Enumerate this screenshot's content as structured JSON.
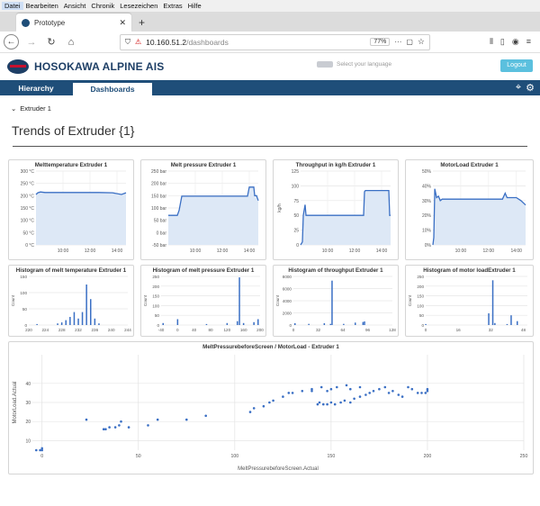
{
  "browser": {
    "menu": [
      "Datei",
      "Bearbeiten",
      "Ansicht",
      "Chronik",
      "Lesezeichen",
      "Extras",
      "Hilfe"
    ],
    "tab_title": "Prototype",
    "url_host": "10.160.51.2",
    "url_path": "/dashboards",
    "zoom": "77%"
  },
  "app": {
    "brand": "HOSOKAWA ALPINE",
    "brand_suffix": "AIS",
    "language_placeholder": "Select your language",
    "logout": "Logout",
    "nav_tabs": [
      "Hierarchy",
      "Dashboards"
    ],
    "breadcrumb": "Extruder 1",
    "page_title": "Trends of Extruder {1}"
  },
  "colors": {
    "accent": "#1f4e79",
    "series": "#3a6fc4",
    "fill": "#dde8f6",
    "logout": "#5bc0de"
  },
  "chart_data": [
    {
      "type": "line",
      "title": "Melttemperature Extruder 1",
      "y_ticks": [
        "0 °C",
        "50 °C",
        "100 °C",
        "150 °C",
        "200 °C",
        "250 °C",
        "300 °C"
      ],
      "ylim": [
        0,
        300
      ],
      "x_ticks": [
        "10:00",
        "12:00",
        "14:00"
      ],
      "x": [
        0,
        2,
        5,
        10,
        20,
        30,
        40,
        55,
        70,
        85,
        95,
        100
      ],
      "y": [
        205,
        212,
        215,
        213,
        213,
        213,
        213,
        213,
        213,
        212,
        205,
        212
      ]
    },
    {
      "type": "line",
      "title": "Melt pressure Extruder 1",
      "y_ticks": [
        "-50 bar",
        "0 bar",
        "50 bar",
        "100 bar",
        "150 bar",
        "200 bar",
        "250 bar"
      ],
      "ylim": [
        -50,
        250
      ],
      "x_ticks": [
        "10:00",
        "12:00",
        "14:00"
      ],
      "x": [
        0,
        10,
        12,
        15,
        20,
        40,
        60,
        80,
        88,
        90,
        95,
        96,
        98,
        100
      ],
      "y": [
        70,
        70,
        90,
        148,
        148,
        148,
        148,
        148,
        148,
        185,
        185,
        150,
        150,
        130
      ]
    },
    {
      "type": "line",
      "title": "Throughput in kg/h Extruder 1",
      "ylabel": "kg/h",
      "y_ticks": [
        "0",
        "25",
        "50",
        "75",
        "100",
        "125"
      ],
      "ylim": [
        0,
        125
      ],
      "x_ticks": [
        "10:00",
        "12:00",
        "14:00"
      ],
      "x": [
        0,
        2,
        3,
        5,
        6,
        10,
        20,
        40,
        60,
        70,
        71,
        72,
        75,
        98,
        99,
        100
      ],
      "y": [
        0,
        5,
        50,
        68,
        50,
        50,
        50,
        50,
        50,
        50,
        90,
        92,
        92,
        92,
        50,
        50
      ]
    },
    {
      "type": "line",
      "title": "MotorLoad Extruder 1",
      "y_ticks": [
        "0%",
        "10%",
        "20%",
        "30%",
        "40%",
        "50%"
      ],
      "ylim": [
        0,
        50
      ],
      "x_ticks": [
        "10:00",
        "12:00",
        "14:00"
      ],
      "x": [
        0,
        1,
        2,
        4,
        6,
        8,
        10,
        20,
        40,
        60,
        75,
        78,
        80,
        90,
        95,
        100
      ],
      "y": [
        0,
        5,
        38,
        32,
        33,
        30,
        31,
        31,
        31,
        31,
        31,
        35,
        32,
        32,
        30,
        27
      ]
    },
    {
      "type": "bar",
      "title": "Histogram of melt temperature Extruder 1",
      "ylabel": "Count",
      "x_ticks": [
        "220",
        "224",
        "228",
        "232",
        "236",
        "240",
        "244"
      ],
      "xlim": [
        220,
        244
      ],
      "y_ticks": [
        "0",
        "50",
        "100",
        "150"
      ],
      "ylim": [
        0,
        150
      ],
      "bins": [
        222,
        227,
        228,
        229,
        230,
        231,
        232,
        233,
        234,
        235,
        236,
        237
      ],
      "values": [
        3,
        5,
        8,
        15,
        25,
        40,
        20,
        40,
        125,
        80,
        20,
        5
      ]
    },
    {
      "type": "bar",
      "title": "Histogram of melt pressure Extruder 1",
      "ylabel": "Count",
      "x_ticks": [
        "-40",
        "0",
        "40",
        "80",
        "120",
        "160",
        "200"
      ],
      "xlim": [
        -40,
        200
      ],
      "y_ticks": [
        "0",
        "50",
        "100",
        "150",
        "200",
        "250"
      ],
      "ylim": [
        0,
        250
      ],
      "bins": [
        -35,
        0,
        70,
        120,
        145,
        150,
        160,
        185,
        195
      ],
      "values": [
        10,
        30,
        5,
        10,
        20,
        245,
        10,
        15,
        30
      ],
      "values_units": "count"
    },
    {
      "type": "bar",
      "title": "Histogram of throughput Extruder 1",
      "ylabel": "Count",
      "x_ticks": [
        "0",
        "32",
        "64",
        "96",
        "128"
      ],
      "xlim": [
        0,
        128
      ],
      "y_ticks": [
        "0",
        "2000",
        "4000",
        "6000",
        "8000"
      ],
      "ylim": [
        0,
        8000
      ],
      "bins": [
        2,
        20,
        40,
        48,
        50,
        65,
        80,
        90,
        92
      ],
      "values": [
        300,
        200,
        300,
        200,
        7300,
        200,
        400,
        500,
        600
      ]
    },
    {
      "type": "bar",
      "title": "Histogram of motor loadExtruder 1",
      "ylabel": "Count",
      "x_ticks": [
        "0",
        "16",
        "32",
        "48"
      ],
      "xlim": [
        0,
        50
      ],
      "y_ticks": [
        "0",
        "50",
        "100",
        "150",
        "200",
        "250"
      ],
      "ylim": [
        0,
        250
      ],
      "bins": [
        0,
        31,
        33,
        34,
        40,
        42,
        45
      ],
      "values": [
        5,
        60,
        230,
        10,
        5,
        50,
        20
      ]
    },
    {
      "type": "scatter",
      "title": "MeltPressurebeforeScreen / MotorLoad - Extruder 1",
      "xlabel": "MeltPressurebeforeScreen.Actual",
      "ylabel": "MotorLoad.Actual",
      "x_ticks": [
        "0",
        "50",
        "100",
        "150",
        "200",
        "250"
      ],
      "xlim": [
        -5,
        250
      ],
      "y_ticks": [
        "10",
        "20",
        "30",
        "40"
      ],
      "ylim": [
        5,
        55
      ],
      "points": [
        [
          -3,
          5
        ],
        [
          -1,
          5
        ],
        [
          0,
          5
        ],
        [
          0,
          6
        ],
        [
          23,
          21
        ],
        [
          32,
          16
        ],
        [
          33,
          16
        ],
        [
          35,
          17
        ],
        [
          38,
          17
        ],
        [
          40,
          18
        ],
        [
          41,
          20
        ],
        [
          45,
          17
        ],
        [
          55,
          18
        ],
        [
          60,
          21
        ],
        [
          75,
          21
        ],
        [
          85,
          23
        ],
        [
          108,
          25
        ],
        [
          110,
          27
        ],
        [
          115,
          28
        ],
        [
          118,
          30
        ],
        [
          120,
          31
        ],
        [
          125,
          33
        ],
        [
          128,
          35
        ],
        [
          130,
          35
        ],
        [
          135,
          36
        ],
        [
          140,
          36
        ],
        [
          143,
          29
        ],
        [
          144,
          30
        ],
        [
          146,
          29
        ],
        [
          148,
          29
        ],
        [
          150,
          30
        ],
        [
          152,
          29
        ],
        [
          155,
          30
        ],
        [
          157,
          31
        ],
        [
          160,
          30
        ],
        [
          162,
          32
        ],
        [
          165,
          33
        ],
        [
          168,
          34
        ],
        [
          170,
          35
        ],
        [
          172,
          36
        ],
        [
          175,
          37
        ],
        [
          178,
          38
        ],
        [
          180,
          35
        ],
        [
          182,
          36
        ],
        [
          185,
          34
        ],
        [
          187,
          33
        ],
        [
          190,
          38
        ],
        [
          192,
          37
        ],
        [
          195,
          35
        ],
        [
          197,
          35
        ],
        [
          199,
          35
        ],
        [
          200,
          36
        ],
        [
          148,
          36
        ],
        [
          150,
          37
        ],
        [
          153,
          38
        ],
        [
          158,
          39
        ],
        [
          160,
          37
        ],
        [
          165,
          38
        ],
        [
          140,
          37
        ],
        [
          145,
          38
        ],
        [
          200,
          37
        ]
      ]
    }
  ]
}
